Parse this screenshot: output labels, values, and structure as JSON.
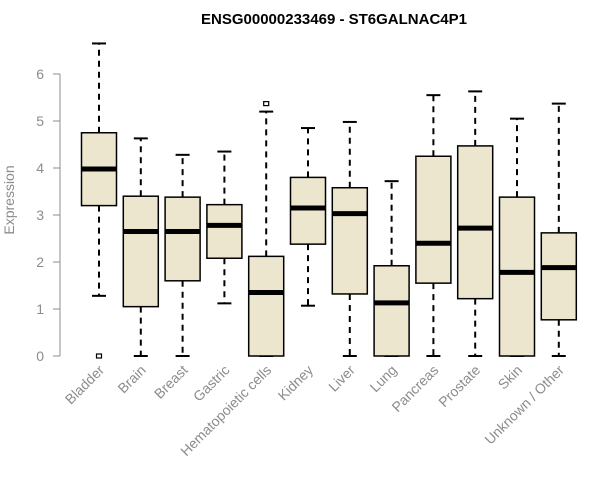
{
  "chart_data": {
    "type": "boxplot",
    "title": "ENSG00000233469 - ST6GALNAC4P1",
    "xlabel": "",
    "ylabel": "Expression",
    "ylim": [
      0,
      6.8
    ],
    "yticks": [
      0,
      1,
      2,
      3,
      4,
      5,
      6
    ],
    "colors": {
      "box_fill": "#ede6ce",
      "box_stroke": "#000000",
      "axis": "#8c8c8c",
      "title": "#000000"
    },
    "categories": [
      "Bladder",
      "Brain",
      "Breast",
      "Gastric",
      "Hematopoietic cells",
      "Kidney",
      "Liver",
      "Lung",
      "Pancreas",
      "Prostate",
      "Skin",
      "Unknown / Other"
    ],
    "boxes": [
      {
        "name": "Bladder",
        "min": 1.28,
        "q1": 3.2,
        "median": 3.98,
        "q3": 4.75,
        "max": 6.65,
        "outliers": [
          0.0
        ]
      },
      {
        "name": "Brain",
        "min": 0.0,
        "q1": 1.05,
        "median": 2.65,
        "q3": 3.4,
        "max": 4.63,
        "outliers": []
      },
      {
        "name": "Breast",
        "min": 0.0,
        "q1": 1.6,
        "median": 2.65,
        "q3": 3.38,
        "max": 4.28,
        "outliers": []
      },
      {
        "name": "Gastric",
        "min": 1.12,
        "q1": 2.08,
        "median": 2.78,
        "q3": 3.22,
        "max": 4.35,
        "outliers": []
      },
      {
        "name": "Hematopoietic cells",
        "min": 0.0,
        "q1": 0.0,
        "median": 1.35,
        "q3": 2.12,
        "max": 5.2,
        "outliers": [
          5.37
        ]
      },
      {
        "name": "Kidney",
        "min": 1.07,
        "q1": 2.38,
        "median": 3.15,
        "q3": 3.8,
        "max": 4.85,
        "outliers": []
      },
      {
        "name": "Liver",
        "min": 0.0,
        "q1": 1.32,
        "median": 3.03,
        "q3": 3.58,
        "max": 4.98,
        "outliers": []
      },
      {
        "name": "Lung",
        "min": 0.0,
        "q1": 0.0,
        "median": 1.13,
        "q3": 1.92,
        "max": 3.72,
        "outliers": []
      },
      {
        "name": "Pancreas",
        "min": 0.0,
        "q1": 1.55,
        "median": 2.4,
        "q3": 4.25,
        "max": 5.55,
        "outliers": []
      },
      {
        "name": "Prostate",
        "min": 0.0,
        "q1": 1.22,
        "median": 2.72,
        "q3": 4.47,
        "max": 5.63,
        "outliers": []
      },
      {
        "name": "Skin",
        "min": 0.0,
        "q1": 0.0,
        "median": 1.78,
        "q3": 3.38,
        "max": 5.05,
        "outliers": []
      },
      {
        "name": "Unknown / Other",
        "min": 0.0,
        "q1": 0.77,
        "median": 1.88,
        "q3": 2.62,
        "max": 5.37,
        "outliers": []
      }
    ]
  }
}
